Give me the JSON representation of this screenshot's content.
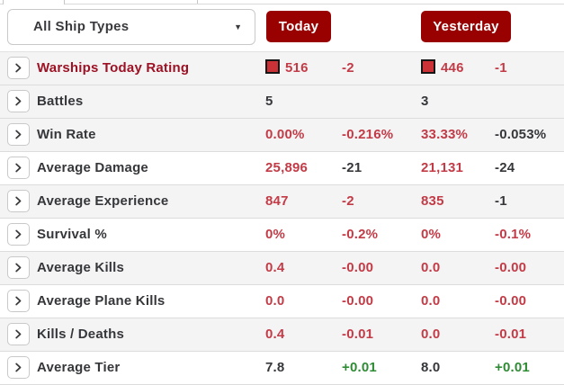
{
  "colors": {
    "accent_red": "#990000",
    "value_red": "#c23b46",
    "label_red": "#9c1224",
    "dark_text": "#36373a",
    "green": "#2e8b34",
    "icon_fill": "#ca3238",
    "row_gray": "#f4f4f5",
    "divider": "#dcdcdc"
  },
  "header": {
    "ship_type_filter": {
      "selected": "All Ship Types",
      "caret": "▼"
    },
    "column_buttons": [
      {
        "label": "Today"
      },
      {
        "label": "Yesterday"
      }
    ]
  },
  "stats_rows": [
    {
      "label": "Warships Today Rating",
      "label_color": "red",
      "bg": "gray",
      "today": {
        "icon": "rating-color-swatch",
        "value": "516",
        "value_color": "red",
        "delta": "-2",
        "delta_color": "red"
      },
      "yesterday": {
        "icon": "rating-color-swatch",
        "value": "446",
        "value_color": "red",
        "delta": "-1",
        "delta_color": "red"
      }
    },
    {
      "label": "Battles",
      "label_color": "dark",
      "bg": "gray",
      "today": {
        "value": "5",
        "value_color": "dark"
      },
      "yesterday": {
        "value": "3",
        "value_color": "dark"
      }
    },
    {
      "label": "Win Rate",
      "label_color": "dark",
      "bg": "gray",
      "today": {
        "value": "0.00%",
        "value_color": "red",
        "delta": "-0.216%",
        "delta_color": "red"
      },
      "yesterday": {
        "value": "33.33%",
        "value_color": "red",
        "delta": "-0.053%",
        "delta_color": "dark"
      }
    },
    {
      "label": "Average Damage",
      "label_color": "dark",
      "bg": "white",
      "today": {
        "value": "25,896",
        "value_color": "red",
        "delta": "-21",
        "delta_color": "dark"
      },
      "yesterday": {
        "value": "21,131",
        "value_color": "red",
        "delta": "-24",
        "delta_color": "dark"
      }
    },
    {
      "label": "Average Experience",
      "label_color": "dark",
      "bg": "gray",
      "today": {
        "value": "847",
        "value_color": "red",
        "delta": "-2",
        "delta_color": "red"
      },
      "yesterday": {
        "value": "835",
        "value_color": "red",
        "delta": "-1",
        "delta_color": "dark"
      }
    },
    {
      "label": "Survival %",
      "label_color": "dark",
      "bg": "white",
      "today": {
        "value": "0%",
        "value_color": "red",
        "delta": "-0.2%",
        "delta_color": "red"
      },
      "yesterday": {
        "value": "0%",
        "value_color": "red",
        "delta": "-0.1%",
        "delta_color": "red"
      }
    },
    {
      "label": "Average Kills",
      "label_color": "dark",
      "bg": "gray",
      "today": {
        "value": "0.4",
        "value_color": "red",
        "delta": "-0.00",
        "delta_color": "red"
      },
      "yesterday": {
        "value": "0.0",
        "value_color": "red",
        "delta": "-0.00",
        "delta_color": "red"
      }
    },
    {
      "label": "Average Plane Kills",
      "label_color": "dark",
      "bg": "white",
      "today": {
        "value": "0.0",
        "value_color": "red",
        "delta": "-0.00",
        "delta_color": "red"
      },
      "yesterday": {
        "value": "0.0",
        "value_color": "red",
        "delta": "-0.00",
        "delta_color": "red"
      }
    },
    {
      "label": "Kills / Deaths",
      "label_color": "dark",
      "bg": "gray",
      "today": {
        "value": "0.4",
        "value_color": "red",
        "delta": "-0.01",
        "delta_color": "red"
      },
      "yesterday": {
        "value": "0.0",
        "value_color": "red",
        "delta": "-0.01",
        "delta_color": "red"
      }
    },
    {
      "label": "Average Tier",
      "label_color": "dark",
      "bg": "white",
      "today": {
        "value": "7.8",
        "value_color": "dark",
        "delta": "+0.01",
        "delta_color": "green"
      },
      "yesterday": {
        "value": "8.0",
        "value_color": "dark",
        "delta": "+0.01",
        "delta_color": "green"
      }
    }
  ]
}
